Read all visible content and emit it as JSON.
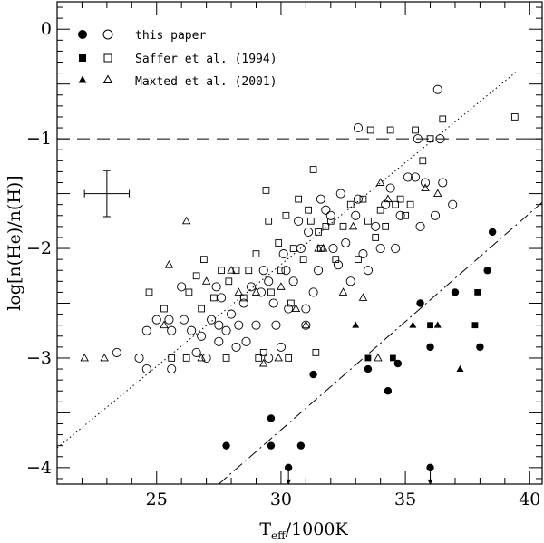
{
  "chart_data": {
    "type": "scatter",
    "xlabel": "T",
    "xlabel_subscript": "eff",
    "xlabel_suffix": "/1000K",
    "ylabel": "log[n(He)/n(H)]",
    "xlim": [
      21,
      40.5
    ],
    "ylim": [
      -4.15,
      0.25
    ],
    "x_ticks": [
      25,
      30,
      35,
      40
    ],
    "y_ticks": [
      0,
      -1,
      -2,
      -3,
      -4
    ],
    "x_tick_labels": [
      "25",
      "30",
      "35",
      "40"
    ],
    "y_tick_labels": [
      "0",
      "−1",
      "−2",
      "−3",
      "−4"
    ],
    "legend": [
      {
        "label": "this paper",
        "markers": [
          "filled-circle",
          "open-circle"
        ]
      },
      {
        "label": "Saffer et al. (1994)",
        "markers": [
          "filled-square",
          "open-square"
        ]
      },
      {
        "label": "Maxted et al. (2001)",
        "markers": [
          "filled-triangle",
          "open-triangle"
        ]
      }
    ],
    "reference_lines": [
      {
        "name": "solar-helium-line",
        "style": "dashed",
        "y": -1.0
      },
      {
        "name": "sequence-1-fit",
        "style": "dotted",
        "x": [
          21,
          39.5
        ],
        "y": [
          -3.82,
          -0.38
        ]
      },
      {
        "name": "sequence-2-fit",
        "style": "dash-dot",
        "x": [
          27.5,
          40.5
        ],
        "y": [
          -4.15,
          -1.58
        ]
      }
    ],
    "error_bar": {
      "x": 23.0,
      "y": -1.5,
      "x_err": 0.9,
      "y_err": 0.21
    },
    "series": [
      {
        "name": "this paper (filled)",
        "marker": "filled-circle",
        "points": [
          [
            27.8,
            -3.8
          ],
          [
            29.6,
            -3.55
          ],
          [
            29.6,
            -3.8
          ],
          [
            30.8,
            -3.8
          ],
          [
            31.3,
            -3.15
          ],
          [
            33.5,
            -3.1
          ],
          [
            34.3,
            -3.3
          ],
          [
            34.7,
            -3.05
          ],
          [
            35.6,
            -2.5
          ],
          [
            36.0,
            -2.9
          ],
          [
            37.0,
            -2.4
          ],
          [
            38.0,
            -2.9
          ],
          [
            38.3,
            -2.2
          ],
          [
            38.5,
            -1.85
          ]
        ]
      },
      {
        "name": "this paper (upper limits)",
        "marker": "filled-circle-arrow",
        "points": [
          [
            30.3,
            -4.0
          ],
          [
            36.0,
            -4.0
          ]
        ]
      },
      {
        "name": "this paper (open)",
        "marker": "open-circle",
        "points": [
          [
            23.4,
            -2.95
          ],
          [
            24.3,
            -3.0
          ],
          [
            24.6,
            -2.75
          ],
          [
            25.0,
            -2.65
          ],
          [
            25.5,
            -2.65
          ],
          [
            25.6,
            -3.1
          ],
          [
            25.6,
            -2.75
          ],
          [
            26.1,
            -2.65
          ],
          [
            26.4,
            -2.75
          ],
          [
            26.6,
            -2.95
          ],
          [
            26.8,
            -2.8
          ],
          [
            27.0,
            -3.0
          ],
          [
            27.2,
            -2.65
          ],
          [
            27.4,
            -2.35
          ],
          [
            27.5,
            -2.7
          ],
          [
            27.5,
            -2.85
          ],
          [
            27.6,
            -2.45
          ],
          [
            27.8,
            -2.75
          ],
          [
            28.0,
            -2.6
          ],
          [
            28.2,
            -2.9
          ],
          [
            28.3,
            -2.7
          ],
          [
            28.5,
            -2.5
          ],
          [
            28.6,
            -2.85
          ],
          [
            28.8,
            -2.35
          ],
          [
            29.0,
            -2.7
          ],
          [
            29.2,
            -2.4
          ],
          [
            29.3,
            -2.2
          ],
          [
            29.5,
            -2.3
          ],
          [
            29.7,
            -2.5
          ],
          [
            29.8,
            -2.7
          ],
          [
            30.0,
            -2.9
          ],
          [
            30.1,
            -2.05
          ],
          [
            30.2,
            -2.2
          ],
          [
            30.3,
            -2.55
          ],
          [
            30.5,
            -2.3
          ],
          [
            30.7,
            -1.75
          ],
          [
            30.8,
            -2.0
          ],
          [
            31.0,
            -2.7
          ],
          [
            31.1,
            -1.85
          ],
          [
            31.3,
            -2.4
          ],
          [
            31.5,
            -2.2
          ],
          [
            31.6,
            -1.55
          ],
          [
            31.8,
            -1.65
          ],
          [
            32.0,
            -1.7
          ],
          [
            32.1,
            -2.0
          ],
          [
            32.3,
            -2.15
          ],
          [
            32.4,
            -1.5
          ],
          [
            32.6,
            -1.95
          ],
          [
            32.8,
            -2.3
          ],
          [
            33.0,
            -1.7
          ],
          [
            33.1,
            -1.55
          ],
          [
            33.3,
            -2.05
          ],
          [
            33.5,
            -2.2
          ],
          [
            33.8,
            -1.8
          ],
          [
            34.0,
            -2.0
          ],
          [
            34.2,
            -1.6
          ],
          [
            34.4,
            -1.45
          ],
          [
            34.6,
            -2.0
          ],
          [
            34.8,
            -1.7
          ],
          [
            35.1,
            -1.35
          ],
          [
            35.4,
            -1.35
          ],
          [
            35.5,
            -1.0
          ],
          [
            35.6,
            -1.8
          ],
          [
            35.8,
            -1.4
          ],
          [
            36.2,
            -1.7
          ],
          [
            36.3,
            -0.55
          ],
          [
            36.4,
            -1.0
          ],
          [
            36.5,
            -1.4
          ],
          [
            36.9,
            -1.6
          ],
          [
            33.1,
            -0.9
          ],
          [
            29.5,
            -3.0
          ],
          [
            31.0,
            -2.55
          ],
          [
            26.0,
            -2.35
          ],
          [
            24.6,
            -3.1
          ]
        ]
      },
      {
        "name": "Saffer et al. (1994) (filled)",
        "marker": "filled-square",
        "points": [
          [
            33.5,
            -3.0
          ],
          [
            34.5,
            -3.0
          ],
          [
            36.0,
            -2.7
          ],
          [
            37.9,
            -2.4
          ],
          [
            37.8,
            -2.7
          ]
        ]
      },
      {
        "name": "Saffer et al. (1994) (open)",
        "marker": "open-square",
        "points": [
          [
            24.7,
            -2.4
          ],
          [
            25.3,
            -2.55
          ],
          [
            25.6,
            -3.0
          ],
          [
            26.2,
            -3.0
          ],
          [
            26.3,
            -2.4
          ],
          [
            26.6,
            -2.25
          ],
          [
            26.8,
            -2.55
          ],
          [
            26.9,
            -2.1
          ],
          [
            27.3,
            -2.45
          ],
          [
            27.6,
            -2.2
          ],
          [
            27.8,
            -3.0
          ],
          [
            27.9,
            -2.3
          ],
          [
            28.2,
            -2.2
          ],
          [
            28.5,
            -2.45
          ],
          [
            28.7,
            -2.2
          ],
          [
            29.0,
            -2.05
          ],
          [
            29.1,
            -3.0
          ],
          [
            29.3,
            -2.95
          ],
          [
            29.5,
            -1.75
          ],
          [
            29.6,
            -2.4
          ],
          [
            29.9,
            -1.95
          ],
          [
            30.0,
            -2.2
          ],
          [
            30.2,
            -1.7
          ],
          [
            30.3,
            -3.0
          ],
          [
            30.5,
            -2.0
          ],
          [
            30.7,
            -1.55
          ],
          [
            30.9,
            -2.1
          ],
          [
            31.1,
            -1.65
          ],
          [
            31.2,
            -1.75
          ],
          [
            31.3,
            -1.28
          ],
          [
            31.5,
            -1.85
          ],
          [
            31.6,
            -2.0
          ],
          [
            31.8,
            -1.8
          ],
          [
            32.0,
            -1.75
          ],
          [
            32.2,
            -2.1
          ],
          [
            32.5,
            -1.8
          ],
          [
            32.8,
            -1.6
          ],
          [
            33.1,
            -2.1
          ],
          [
            33.3,
            -1.55
          ],
          [
            33.5,
            -1.75
          ],
          [
            33.6,
            -0.92
          ],
          [
            33.8,
            -1.9
          ],
          [
            34.0,
            -1.65
          ],
          [
            34.2,
            -1.8
          ],
          [
            34.4,
            -0.92
          ],
          [
            34.6,
            -1.6
          ],
          [
            34.8,
            -1.55
          ],
          [
            35.0,
            -1.7
          ],
          [
            35.2,
            -1.6
          ],
          [
            35.4,
            -0.92
          ],
          [
            35.7,
            -1.2
          ],
          [
            36.0,
            -1.0
          ],
          [
            36.5,
            -0.82
          ],
          [
            39.4,
            -0.8
          ],
          [
            29.4,
            -1.47
          ],
          [
            30.4,
            -2.5
          ],
          [
            31.4,
            -2.95
          ]
        ]
      },
      {
        "name": "Maxted et al. (2001) (filled)",
        "marker": "filled-triangle",
        "points": [
          [
            33.0,
            -2.7
          ],
          [
            35.3,
            -2.7
          ],
          [
            36.3,
            -2.7
          ],
          [
            37.2,
            -3.1
          ]
        ]
      },
      {
        "name": "Maxted et al. (2001) (open)",
        "marker": "open-triangle",
        "points": [
          [
            22.1,
            -3.0
          ],
          [
            22.9,
            -3.0
          ],
          [
            25.5,
            -2.15
          ],
          [
            26.2,
            -1.75
          ],
          [
            26.8,
            -3.0
          ],
          [
            27.0,
            -2.3
          ],
          [
            28.0,
            -2.2
          ],
          [
            28.3,
            -2.4
          ],
          [
            29.0,
            -2.4
          ],
          [
            29.3,
            -3.05
          ],
          [
            30.0,
            -2.35
          ],
          [
            30.6,
            -2.55
          ],
          [
            31.0,
            -2.7
          ],
          [
            31.7,
            -2.0
          ],
          [
            32.5,
            -2.4
          ],
          [
            33.3,
            -2.45
          ],
          [
            34.0,
            -1.4
          ],
          [
            35.8,
            -1.45
          ],
          [
            36.3,
            -1.5
          ],
          [
            34.3,
            -1.55
          ],
          [
            32.9,
            -1.8
          ],
          [
            25.3,
            -2.7
          ],
          [
            29.9,
            -3.0
          ],
          [
            31.5,
            -2.0
          ],
          [
            33.9,
            -3.0
          ]
        ]
      }
    ]
  }
}
